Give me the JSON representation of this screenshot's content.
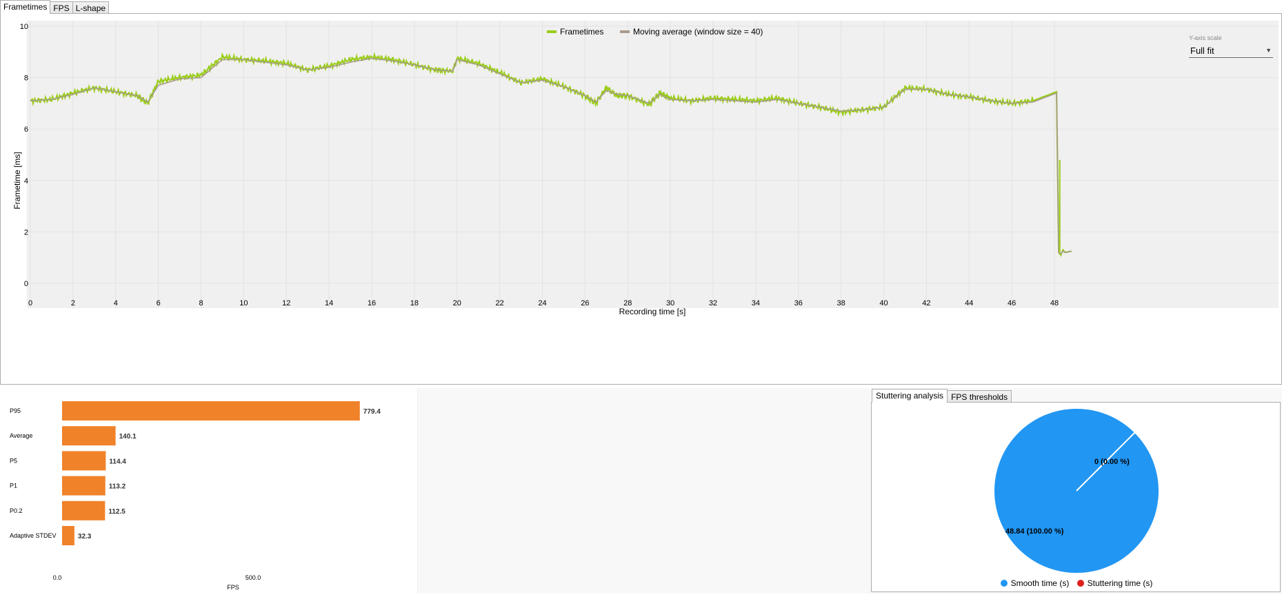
{
  "tabs": [
    "Frametimes",
    "FPS",
    "L-shape"
  ],
  "colors": {
    "frametimes": "#9acd1a",
    "moving_avg": "#a89a8e",
    "bar": "#f0822a",
    "smooth": "#2196f3",
    "stutter": "#e0201c"
  },
  "y_axis_scale": {
    "label": "Y-axis scale",
    "value": "Full fit"
  },
  "chart_data": [
    {
      "type": "line",
      "xlabel": "Recording time [s]",
      "ylabel": "Frametime [ms]",
      "xlim": [
        0,
        48.8
      ],
      "ylim": [
        -0.5,
        10.5
      ],
      "xticks": [
        0,
        2,
        4,
        6,
        8,
        10,
        12,
        14,
        16,
        18,
        20,
        22,
        24,
        26,
        28,
        30,
        32,
        34,
        36,
        38,
        40,
        42,
        44,
        46,
        48
      ],
      "yticks": [
        0,
        2,
        4,
        6,
        8,
        10
      ],
      "legend_position": "top-center",
      "series": [
        {
          "name": "Frametimes",
          "x": [
            0,
            1,
            2,
            3,
            4,
            5,
            5.5,
            6,
            7,
            8,
            9,
            10,
            11,
            12,
            13,
            14,
            15,
            16,
            17,
            18,
            19,
            19.8,
            20,
            21,
            22,
            23,
            24,
            25,
            26,
            26.5,
            27,
            27.5,
            28,
            29,
            29.5,
            30,
            31,
            32,
            33,
            34,
            35,
            36,
            37,
            38,
            39,
            40,
            41,
            42,
            43,
            44,
            45,
            46,
            47,
            48.1,
            48.2,
            48.3,
            48.4,
            48.5,
            48.8
          ],
          "y": [
            7.1,
            7.15,
            7.4,
            7.6,
            7.45,
            7.3,
            7.0,
            7.85,
            8.0,
            8.1,
            8.8,
            8.7,
            8.65,
            8.55,
            8.3,
            8.45,
            8.7,
            8.8,
            8.7,
            8.5,
            8.3,
            8.25,
            8.75,
            8.55,
            8.2,
            7.8,
            7.95,
            7.65,
            7.3,
            7.0,
            7.6,
            7.3,
            7.3,
            6.95,
            7.4,
            7.2,
            7.1,
            7.2,
            7.15,
            7.1,
            7.2,
            7.0,
            6.85,
            6.65,
            6.75,
            6.85,
            7.6,
            7.55,
            7.35,
            7.25,
            7.1,
            7.0,
            7.1,
            7.45,
            1.2,
            1.1,
            1.3,
            1.2,
            1.25
          ]
        },
        {
          "name": "Moving average (window size = 40)",
          "x": [
            0,
            1,
            2,
            3,
            4,
            5,
            5.5,
            6,
            7,
            8,
            9,
            10,
            11,
            12,
            13,
            14,
            15,
            16,
            17,
            18,
            19,
            19.8,
            20,
            21,
            22,
            23,
            24,
            25,
            26,
            26.5,
            27,
            27.5,
            28,
            29,
            29.5,
            30,
            31,
            32,
            33,
            34,
            35,
            36,
            37,
            38,
            39,
            40,
            41,
            42,
            43,
            44,
            45,
            46,
            47,
            48.1,
            48.2,
            48.3,
            48.4,
            48.5,
            48.8
          ],
          "y": [
            7.1,
            7.15,
            7.35,
            7.6,
            7.45,
            7.3,
            7.05,
            7.7,
            7.95,
            8.0,
            8.7,
            8.7,
            8.6,
            8.5,
            8.3,
            8.4,
            8.6,
            8.75,
            8.65,
            8.5,
            8.3,
            8.25,
            8.7,
            8.5,
            8.15,
            7.8,
            7.9,
            7.65,
            7.3,
            7.05,
            7.5,
            7.35,
            7.3,
            7.0,
            7.35,
            7.15,
            7.1,
            7.15,
            7.1,
            7.05,
            7.15,
            7.0,
            6.85,
            6.7,
            6.75,
            6.85,
            7.55,
            7.55,
            7.35,
            7.25,
            7.1,
            7.0,
            7.05,
            7.4,
            1.2,
            1.15,
            1.25,
            1.2,
            1.25
          ]
        }
      ]
    },
    {
      "type": "bar",
      "orientation": "horizontal",
      "categories": [
        "P95",
        "Average",
        "P5",
        "P1",
        "P0.2",
        "Adaptive STDEV"
      ],
      "values": [
        779.4,
        140.1,
        114.4,
        113.2,
        112.5,
        32.3
      ],
      "value_labels": [
        "779.4",
        "140.1",
        "114.4",
        "113.2",
        "112.5",
        "32.3"
      ],
      "xlabel": "FPS",
      "xticks": [
        "0.0",
        "500.0"
      ],
      "xlim": [
        0,
        1250
      ]
    },
    {
      "type": "pie",
      "slices": [
        {
          "name": "Smooth time (s)",
          "value": 48.84,
          "label": "48.84 (100.00 %)"
        },
        {
          "name": "Stuttering time (s)",
          "value": 0,
          "label": "0 (0.00 %)"
        }
      ]
    }
  ],
  "stutter_tabs": [
    "Stuttering analysis",
    "FPS thresholds"
  ]
}
